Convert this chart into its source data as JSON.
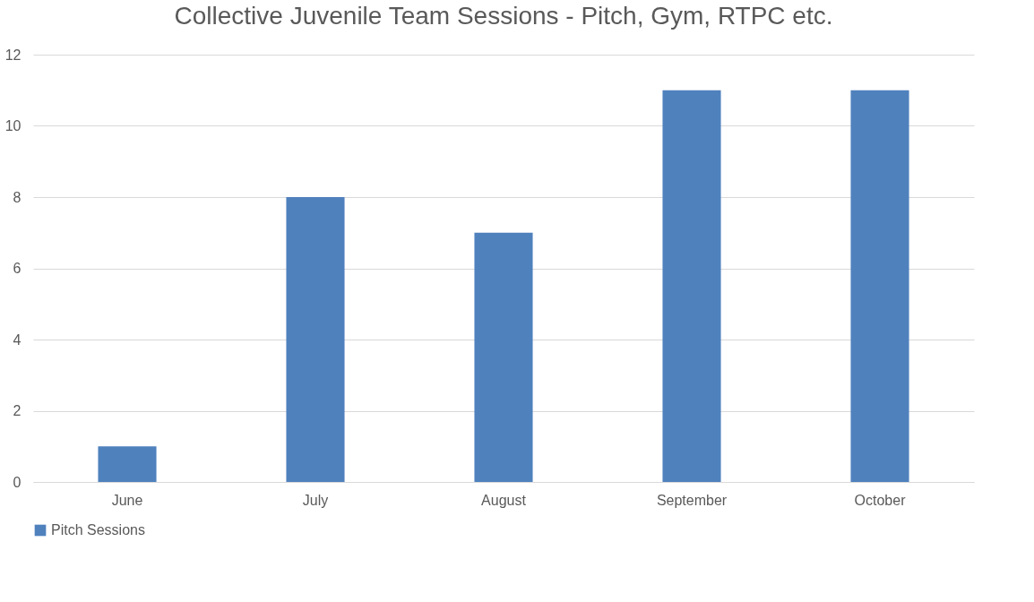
{
  "chart_data": {
    "type": "bar",
    "title": "Collective Juvenile Team Sessions - Pitch, Gym, RTPC etc.",
    "categories": [
      "June",
      "July",
      "August",
      "September",
      "October"
    ],
    "series": [
      {
        "name": "Pitch Sessions",
        "color": "#4f81bd",
        "values": [
          1,
          8,
          7,
          11,
          11
        ]
      }
    ],
    "ylim": [
      0,
      12
    ],
    "yticks": [
      0,
      2,
      4,
      6,
      8,
      10,
      12
    ],
    "grid": "y",
    "legend": "bottom"
  }
}
